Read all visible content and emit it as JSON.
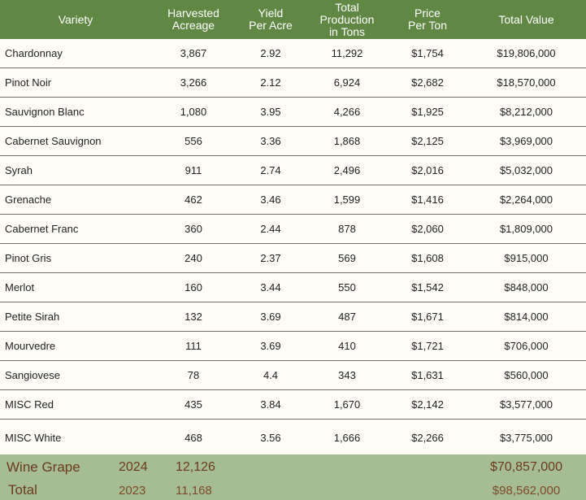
{
  "header": {
    "variety": "Variety",
    "acreage": [
      "Harvested",
      "Acreage"
    ],
    "yield": [
      "Yield",
      "Per Acre"
    ],
    "production": [
      "Total",
      "Production",
      "in Tons"
    ],
    "price": [
      "Price",
      "Per Ton"
    ],
    "value": "Total Value"
  },
  "rows": [
    {
      "variety": "Chardonnay",
      "acreage": "3,867",
      "yield": "2.92",
      "tons": "11,292",
      "price": "$1,754",
      "value": "$19,806,000"
    },
    {
      "variety": "Pinot Noir",
      "acreage": "3,266",
      "yield": "2.12",
      "tons": "6,924",
      "price": "$2,682",
      "value": "$18,570,000"
    },
    {
      "variety": "Sauvignon Blanc",
      "acreage": "1,080",
      "yield": "3.95",
      "tons": "4,266",
      "price": "$1,925",
      "value": "$8,212,000"
    },
    {
      "variety": "Cabernet Sauvignon",
      "acreage": "556",
      "yield": "3.36",
      "tons": "1,868",
      "price": "$2,125",
      "value": "$3,969,000"
    },
    {
      "variety": "Syrah",
      "acreage": "911",
      "yield": "2.74",
      "tons": "2,496",
      "price": "$2,016",
      "value": "$5,032,000"
    },
    {
      "variety": "Grenache",
      "acreage": "462",
      "yield": "3.46",
      "tons": "1,599",
      "price": "$1,416",
      "value": "$2,264,000"
    },
    {
      "variety": "Cabernet Franc",
      "acreage": "360",
      "yield": "2.44",
      "tons": "878",
      "price": "$2,060",
      "value": "$1,809,000"
    },
    {
      "variety": "Pinot Gris",
      "acreage": "240",
      "yield": "2.37",
      "tons": "569",
      "price": "$1,608",
      "value": "$915,000"
    },
    {
      "variety": "Merlot",
      "acreage": "160",
      "yield": "3.44",
      "tons": "550",
      "price": "$1,542",
      "value": "$848,000"
    },
    {
      "variety": "Petite Sirah",
      "acreage": "132",
      "yield": "3.69",
      "tons": "487",
      "price": "$1,671",
      "value": "$814,000"
    },
    {
      "variety": "Mourvedre",
      "acreage": "111",
      "yield": "3.69",
      "tons": "410",
      "price": "$1,721",
      "value": "$706,000"
    },
    {
      "variety": "Sangiovese",
      "acreage": "78",
      "yield": "4.4",
      "tons": "343",
      "price": "$1,631",
      "value": "$560,000"
    },
    {
      "variety": "MISC Red",
      "acreage": "435",
      "yield": "3.84",
      "tons": "1,670",
      "price": "$2,142",
      "value": "$3,577,000"
    },
    {
      "variety": "MISC White",
      "acreage": "468",
      "yield": "3.56",
      "tons": "1,666",
      "price": "$2,266",
      "value": "$3,775,000"
    }
  ],
  "footer": {
    "label_line1": "Wine Grape",
    "label_line2": "Total",
    "year_current": "2024",
    "year_prior": "2023",
    "acreage_current": "12,126",
    "acreage_prior": "11,168",
    "value_current": "$70,857,000",
    "value_prior": "$98,562,000"
  },
  "colors": {
    "header_bg": "#618744",
    "footer_bg": "#a6bd93",
    "footer_text": "#6b3a1e",
    "row_bg": "#fffdf7"
  }
}
